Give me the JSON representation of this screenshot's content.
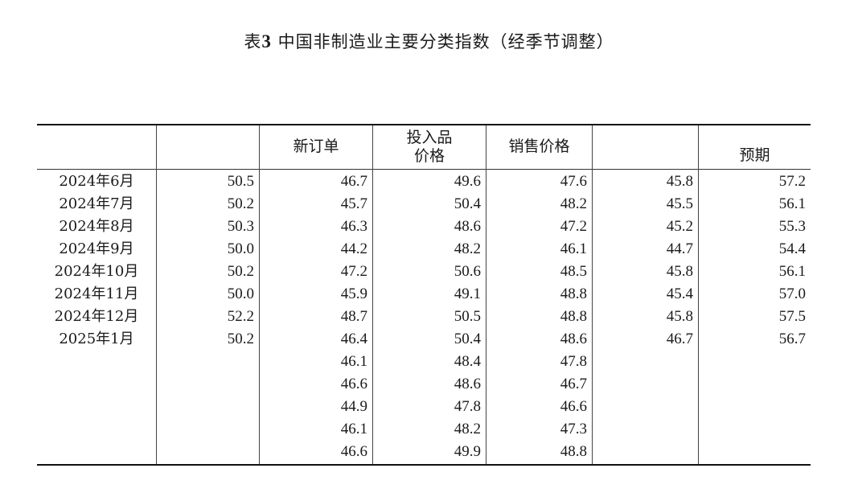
{
  "title": {
    "prefix": "表",
    "number": "3",
    "text": " 中国非制造业主要分类指数（经季节调整）"
  },
  "columns": [
    "",
    "",
    "新订单",
    "投入品\n价格",
    "销售价格",
    "",
    "预期"
  ],
  "rows": [
    {
      "month": "2024年6月",
      "values": [
        "50.5",
        "46.7",
        "49.6",
        "47.6",
        "45.8",
        "57.2"
      ]
    },
    {
      "month": "2024年7月",
      "values": [
        "50.2",
        "45.7",
        "50.4",
        "48.2",
        "45.5",
        "56.1"
      ]
    },
    {
      "month": "2024年8月",
      "values": [
        "50.3",
        "46.3",
        "48.6",
        "47.2",
        "45.2",
        "55.3"
      ]
    },
    {
      "month": "2024年9月",
      "values": [
        "50.0",
        "44.2",
        "48.2",
        "46.1",
        "44.7",
        "54.4"
      ]
    },
    {
      "month": "2024年10月",
      "values": [
        "50.2",
        "47.2",
        "50.6",
        "48.5",
        "45.8",
        "56.1"
      ]
    },
    {
      "month": "2024年11月",
      "values": [
        "50.0",
        "45.9",
        "49.1",
        "48.8",
        "45.4",
        "57.0"
      ]
    },
    {
      "month": "2024年12月",
      "values": [
        "52.2",
        "48.7",
        "50.5",
        "48.8",
        "45.8",
        "57.5"
      ]
    },
    {
      "month": "2025年1月",
      "values": [
        "50.2",
        "46.4",
        "50.4",
        "48.6",
        "46.7",
        "56.7"
      ]
    },
    {
      "month": "",
      "values": [
        "",
        "46.1",
        "48.4",
        "47.8",
        "",
        ""
      ]
    },
    {
      "month": "",
      "values": [
        "",
        "46.6",
        "48.6",
        "46.7",
        "",
        ""
      ]
    },
    {
      "month": "",
      "values": [
        "",
        "44.9",
        "47.8",
        "46.6",
        "",
        ""
      ]
    },
    {
      "month": "",
      "values": [
        "",
        "46.1",
        "48.2",
        "47.3",
        "",
        ""
      ]
    },
    {
      "month": "",
      "values": [
        "",
        "46.6",
        "49.9",
        "48.8",
        "",
        ""
      ]
    }
  ]
}
